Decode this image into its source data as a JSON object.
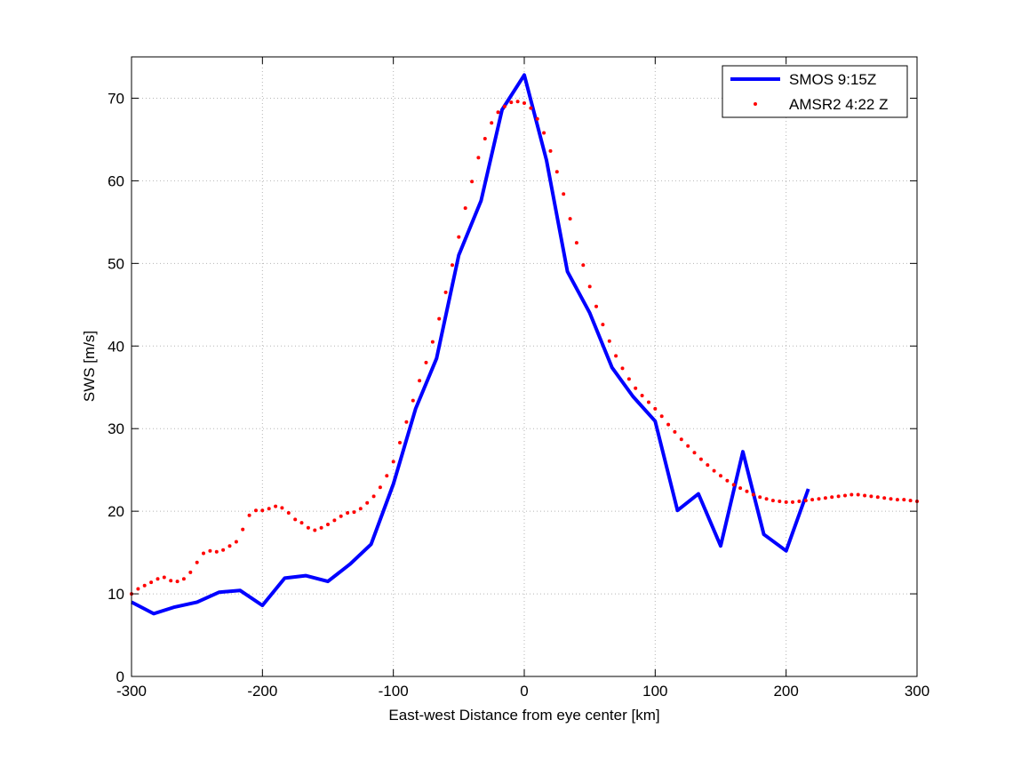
{
  "chart_data": {
    "type": "line",
    "title": "",
    "xlabel": "East-west Distance from eye center [km]",
    "ylabel": "SWS [m/s]",
    "xlim": [
      -300,
      300
    ],
    "ylim": [
      0,
      75
    ],
    "x_ticks": [
      -300,
      -200,
      -100,
      0,
      100,
      200,
      300
    ],
    "y_ticks": [
      0,
      10,
      20,
      30,
      40,
      50,
      60,
      70
    ],
    "x_tick_labels": [
      "-300",
      "-200",
      "-100",
      "0",
      "100",
      "200",
      "300"
    ],
    "y_tick_labels": [
      "0",
      "10",
      "20",
      "30",
      "40",
      "50",
      "60",
      "70"
    ],
    "grid": true,
    "legend_position": "top-right",
    "series": [
      {
        "name": "SMOS 9:15Z",
        "style": "line",
        "color": "#0000ff",
        "x": [
          -300,
          -283,
          -267,
          -250,
          -233,
          -217,
          -200,
          -183,
          -167,
          -150,
          -133,
          -117,
          -100,
          -83,
          -67,
          -50,
          -33,
          -17,
          0,
          17,
          33,
          50,
          67,
          83,
          100,
          117,
          133,
          150,
          167,
          183,
          200,
          217
        ],
        "y": [
          9.0,
          7.6,
          8.4,
          9.0,
          10.2,
          10.4,
          8.6,
          11.9,
          12.2,
          11.5,
          13.6,
          16.0,
          23.3,
          32.4,
          38.5,
          51.0,
          57.6,
          68.6,
          72.8,
          62.5,
          49.0,
          44.0,
          37.4,
          33.9,
          30.9,
          20.1,
          22.1,
          15.8,
          27.2,
          17.2,
          15.2,
          22.7
        ]
      },
      {
        "name": "AMSR2 4:22 Z",
        "style": "dots",
        "color": "#ff0000",
        "x": [
          -300,
          -295,
          -290,
          -285,
          -280,
          -275,
          -270,
          -265,
          -260,
          -255,
          -250,
          -245,
          -240,
          -235,
          -230,
          -225,
          -220,
          -215,
          -210,
          -205,
          -200,
          -195,
          -190,
          -185,
          -180,
          -175,
          -170,
          -165,
          -160,
          -155,
          -150,
          -145,
          -140,
          -135,
          -130,
          -125,
          -120,
          -115,
          -110,
          -105,
          -100,
          -95,
          -90,
          -85,
          -80,
          -75,
          -70,
          -65,
          -60,
          -55,
          -50,
          -45,
          -40,
          -35,
          -30,
          -25,
          -20,
          -15,
          -10,
          -5,
          0,
          5,
          10,
          15,
          20,
          25,
          30,
          35,
          40,
          45,
          50,
          55,
          60,
          65,
          70,
          75,
          80,
          85,
          90,
          95,
          100,
          105,
          110,
          115,
          120,
          125,
          130,
          135,
          140,
          145,
          150,
          155,
          160,
          165,
          170,
          175,
          180,
          185,
          190,
          195,
          200,
          205,
          210,
          215,
          220,
          225,
          230,
          235,
          240,
          245,
          250,
          255,
          260,
          265,
          270,
          275,
          280,
          285,
          290,
          295,
          300
        ],
        "y": [
          10.0,
          10.6,
          11.0,
          11.4,
          11.8,
          12.0,
          11.6,
          11.5,
          11.8,
          12.6,
          13.8,
          14.9,
          15.2,
          15.1,
          15.3,
          15.8,
          16.3,
          17.8,
          19.5,
          20.1,
          20.1,
          20.3,
          20.6,
          20.4,
          19.8,
          19.0,
          18.6,
          18.0,
          17.7,
          18.0,
          18.4,
          18.9,
          19.4,
          19.8,
          19.9,
          20.3,
          21.0,
          21.8,
          22.9,
          24.3,
          26.0,
          28.3,
          30.8,
          33.4,
          35.8,
          38.0,
          40.5,
          43.3,
          46.5,
          49.8,
          53.2,
          56.7,
          59.9,
          62.8,
          65.1,
          67.0,
          68.3,
          69.0,
          69.5,
          69.6,
          69.4,
          68.8,
          67.5,
          65.8,
          63.6,
          61.1,
          58.4,
          55.4,
          52.5,
          49.8,
          47.2,
          44.8,
          42.6,
          40.6,
          38.8,
          37.3,
          36.0,
          34.9,
          34.0,
          33.2,
          32.4,
          31.5,
          30.5,
          29.6,
          28.7,
          27.9,
          27.1,
          26.3,
          25.6,
          24.9,
          24.3,
          23.7,
          23.2,
          22.8,
          22.4,
          22.0,
          21.7,
          21.5,
          21.3,
          21.2,
          21.1,
          21.1,
          21.2,
          21.3,
          21.4,
          21.5,
          21.6,
          21.7,
          21.8,
          21.9,
          22.0,
          22.0,
          21.9,
          21.8,
          21.7,
          21.6,
          21.5,
          21.4,
          21.4,
          21.3,
          21.2
        ]
      }
    ]
  }
}
